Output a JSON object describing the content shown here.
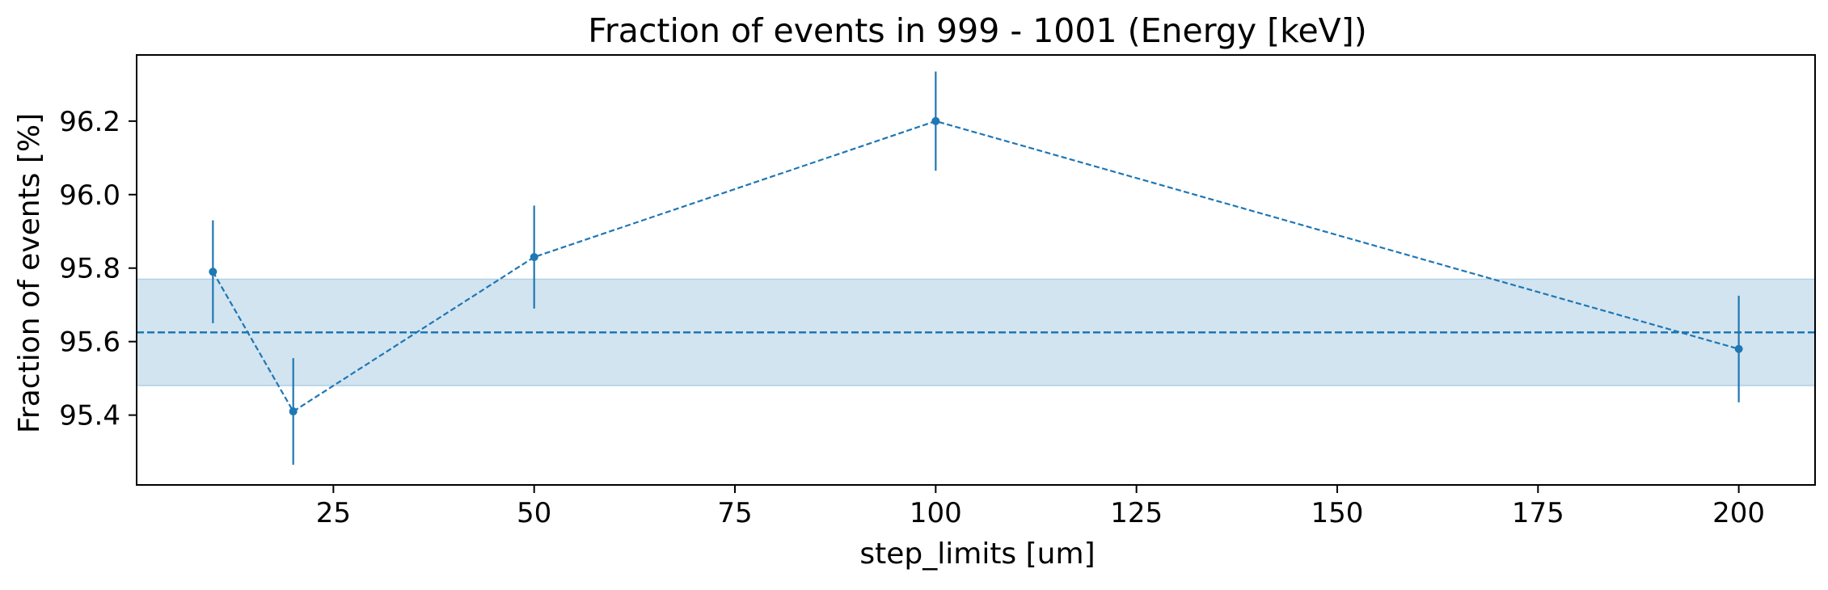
{
  "chart_data": {
    "type": "line",
    "title": "Fraction of events in 999 - 1001 (Energy [keV])",
    "xlabel": "step_limits [um]",
    "ylabel": "Fraction of events [%]",
    "xlim": [
      0.5,
      209.5
    ],
    "ylim": [
      95.21,
      96.38
    ],
    "xticks": [
      25,
      50,
      75,
      100,
      125,
      150,
      175,
      200
    ],
    "xtick_labels": [
      "25",
      "50",
      "75",
      "100",
      "125",
      "150",
      "175",
      "200"
    ],
    "yticks": [
      95.4,
      95.6,
      95.8,
      96.0,
      96.2
    ],
    "ytick_labels": [
      "95.4",
      "95.6",
      "95.8",
      "96.0",
      "96.2"
    ],
    "grid": false,
    "legend": "none",
    "series": [
      {
        "x": [
          10,
          20,
          50,
          100,
          200
        ],
        "y": [
          95.79,
          95.41,
          95.83,
          96.2,
          95.58
        ],
        "yerr": [
          0.14,
          0.145,
          0.14,
          0.135,
          0.145
        ],
        "style": "dashed-line-with-markers",
        "color": "#1f77b4"
      }
    ],
    "reference": {
      "mean": 95.625,
      "band": [
        95.48,
        95.77
      ],
      "style": "dashed-line-with-shaded-band",
      "color": "#1f77b4"
    }
  }
}
